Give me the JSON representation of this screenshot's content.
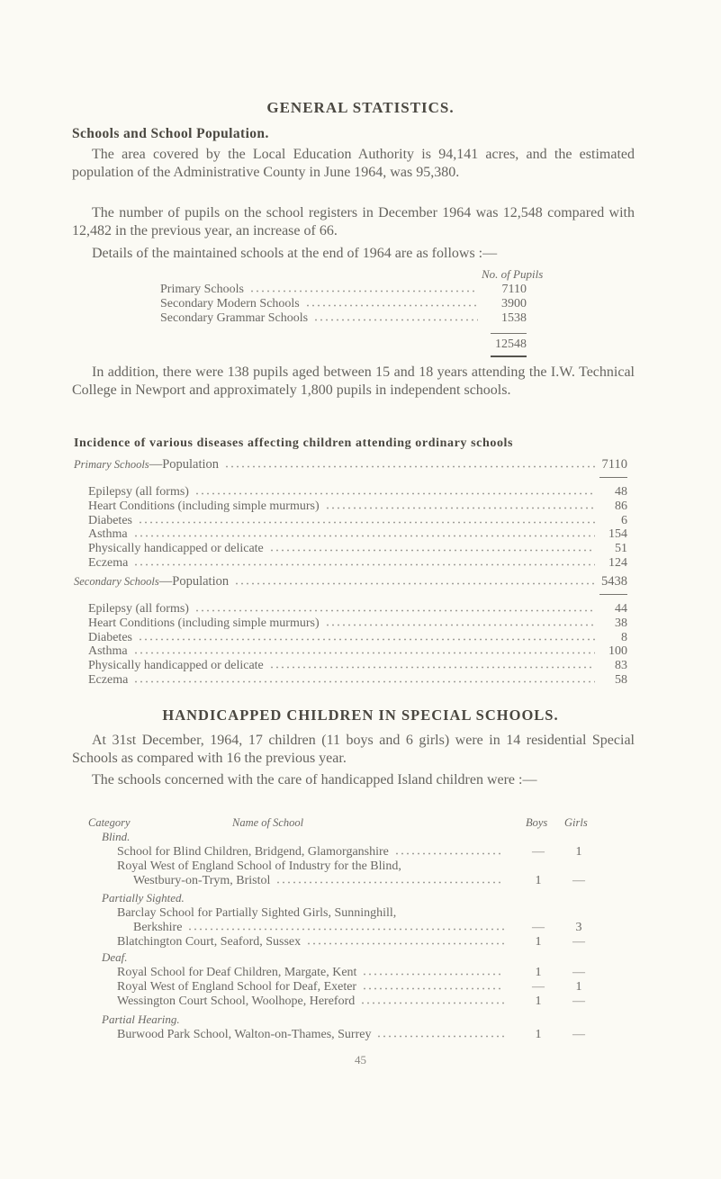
{
  "title": "GENERAL STATISTICS.",
  "schools_section": {
    "heading": "Schools and School Population.",
    "para1": "The area covered by the Local Education Authority is 94,141 acres, and the estimated population of the Administrative County in June 1964, was 95,380.",
    "para2": "The number of pupils on the school registers in December 1964 was 12,548 compared with 12,482 in the previous year, an increase of 66.",
    "para3": "Details of the maintained schools at the end of 1964 are as follows :—",
    "table_header": "No. of Pupils",
    "rows": [
      {
        "label": "Primary Schools",
        "value": "7110"
      },
      {
        "label": "Secondary Modern Schools",
        "value": "3900"
      },
      {
        "label": "Secondary Grammar Schools",
        "value": "1538"
      }
    ],
    "total": "12548",
    "para4": "In addition, there were 138 pupils aged between 15 and 18 years attending the I.W. Technical College in Newport and approximately 1,800 pupils in independent schools."
  },
  "incidence": {
    "heading": "Incidence of various diseases affecting children attending ordinary schools",
    "groups": [
      {
        "category": "Primary Schools",
        "population_label": "—Population",
        "population": "7110",
        "rows": [
          {
            "label": "Epilepsy (all forms)",
            "value": "48"
          },
          {
            "label": "Heart Conditions (including simple murmurs)",
            "value": "86"
          },
          {
            "label": "Diabetes",
            "value": "6"
          },
          {
            "label": "Asthma",
            "value": "154"
          },
          {
            "label": "Physically handicapped or delicate",
            "value": "51"
          },
          {
            "label": "Eczema",
            "value": "124"
          }
        ]
      },
      {
        "category": "Secondary Schools",
        "population_label": "—Population",
        "population": "5438",
        "rows": [
          {
            "label": "Epilepsy (all forms)",
            "value": "44"
          },
          {
            "label": "Heart Conditions (including simple murmurs)",
            "value": "38"
          },
          {
            "label": "Diabetes",
            "value": "8"
          },
          {
            "label": "Asthma",
            "value": "100"
          },
          {
            "label": "Physically handicapped or delicate",
            "value": "83"
          },
          {
            "label": "Eczema",
            "value": "58"
          }
        ]
      }
    ]
  },
  "handicapped": {
    "heading": "HANDICAPPED CHILDREN IN SPECIAL SCHOOLS.",
    "para1": "At 31st December, 1964, 17 children (11 boys and 6 girls) were in 14 residential Special Schools as compared with 16 the previous year.",
    "para2": "The schools concerned with the care of handicapped Island children were :—",
    "columns": {
      "category": "Category",
      "name": "Name of School",
      "boys": "Boys",
      "girls": "Girls"
    },
    "categories": [
      {
        "name": "Blind.",
        "schools": [
          {
            "lines": [
              "School for Blind Children, Bridgend, Glamorganshire"
            ],
            "boys": "—",
            "girls": "1"
          },
          {
            "lines": [
              "Royal West of England School of Industry for the Blind,",
              "Westbury-on-Trym, Bristol"
            ],
            "boys": "1",
            "girls": "—"
          }
        ]
      },
      {
        "name": "Partially Sighted.",
        "schools": [
          {
            "lines": [
              "Barclay School for Partially Sighted Girls, Sunninghill,",
              "Berkshire"
            ],
            "boys": "—",
            "girls": "3"
          },
          {
            "lines": [
              "Blatchington Court, Seaford, Sussex"
            ],
            "boys": "1",
            "girls": "—"
          }
        ]
      },
      {
        "name": "Deaf.",
        "schools": [
          {
            "lines": [
              "Royal School for Deaf Children, Margate, Kent"
            ],
            "boys": "1",
            "girls": "—"
          },
          {
            "lines": [
              "Royal West of England School for Deaf, Exeter"
            ],
            "boys": "—",
            "girls": "1"
          },
          {
            "lines": [
              "Wessington Court School, Woolhope, Hereford"
            ],
            "boys": "1",
            "girls": "—"
          }
        ]
      },
      {
        "name": "Partial Hearing.",
        "schools": [
          {
            "lines": [
              "Burwood Park School, Walton-on-Thames, Surrey"
            ],
            "boys": "1",
            "girls": "—"
          }
        ]
      }
    ]
  },
  "page_number": "45"
}
